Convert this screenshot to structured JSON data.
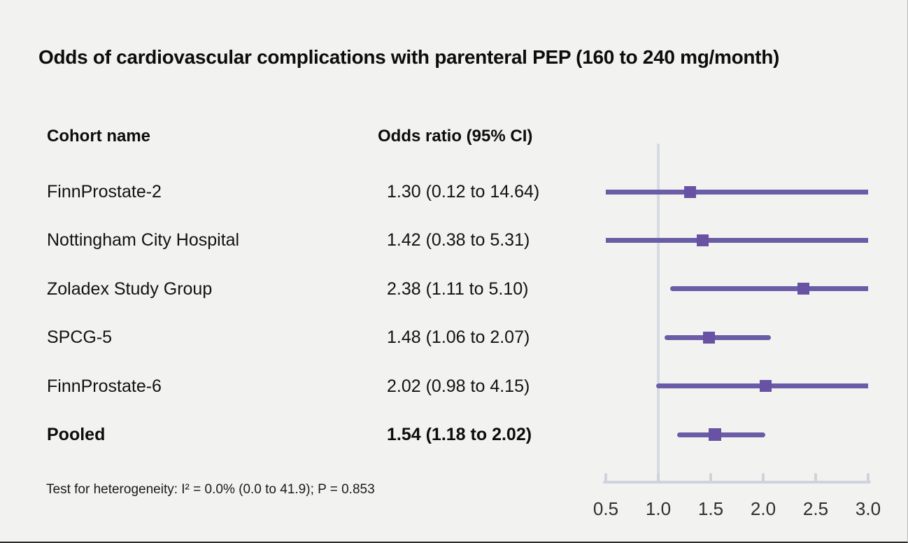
{
  "title": "Odds of cardiovascular complications with parenteral PEP (160 to 240 mg/month)",
  "table": {
    "col1_header": "Cohort name",
    "col2_header": "Odds ratio (95% CI)",
    "rows": [
      {
        "name": "FinnProstate-2",
        "or_text": "1.30 (0.12 to 14.64)"
      },
      {
        "name": "Nottingham City Hospital",
        "or_text": "1.42 (0.38 to 5.31)"
      },
      {
        "name": "Zoladex Study Group",
        "or_text": "2.38 (1.11 to 5.10)"
      },
      {
        "name": "SPCG-5",
        "or_text": "1.48 (1.06 to 2.07)"
      },
      {
        "name": "FinnProstate-6",
        "or_text": "2.02 (0.98 to 4.15)"
      },
      {
        "name": "Pooled",
        "or_text": "1.54 (1.18 to 2.02)"
      }
    ]
  },
  "footnote": "Test for heterogeneity: I² = 0.0% (0.0 to 41.9); P = 0.853",
  "chart_data": {
    "type": "forest",
    "title": "Odds of cardiovascular complications with parenteral PEP (160 to 240 mg/month)",
    "x_axis": {
      "range": [
        0.5,
        3.0
      ],
      "ticks": [
        0.5,
        1.0,
        1.5,
        2.0,
        2.5,
        3.0
      ],
      "tick_labels": [
        "0.5",
        "1.0",
        "1.5",
        "2.0",
        "2.5",
        "3.0"
      ],
      "reference_line": 1.0,
      "grid": false
    },
    "series": [
      {
        "label": "FinnProstate-2",
        "estimate": 1.3,
        "ci_low": 0.12,
        "ci_high": 14.64,
        "pooled": false
      },
      {
        "label": "Nottingham City Hospital",
        "estimate": 1.42,
        "ci_low": 0.38,
        "ci_high": 5.31,
        "pooled": false
      },
      {
        "label": "Zoladex Study Group",
        "estimate": 2.38,
        "ci_low": 1.11,
        "ci_high": 5.1,
        "pooled": false
      },
      {
        "label": "SPCG-5",
        "estimate": 1.48,
        "ci_low": 1.06,
        "ci_high": 2.07,
        "pooled": false
      },
      {
        "label": "FinnProstate-6",
        "estimate": 2.02,
        "ci_low": 0.98,
        "ci_high": 4.15,
        "pooled": false
      },
      {
        "label": "Pooled",
        "estimate": 1.54,
        "ci_low": 1.18,
        "ci_high": 2.02,
        "pooled": true
      }
    ],
    "heterogeneity": "Test for heterogeneity: I² = 0.0% (0.0 to 41.9); P = 0.853",
    "colors": {
      "ci_line": "#6b5ca7",
      "marker": "#6852a3",
      "reference_line": "#d6dae2",
      "axis": "#ced3dc",
      "tick_label": "#2e2e2e",
      "background": "#f2f2f1"
    }
  }
}
